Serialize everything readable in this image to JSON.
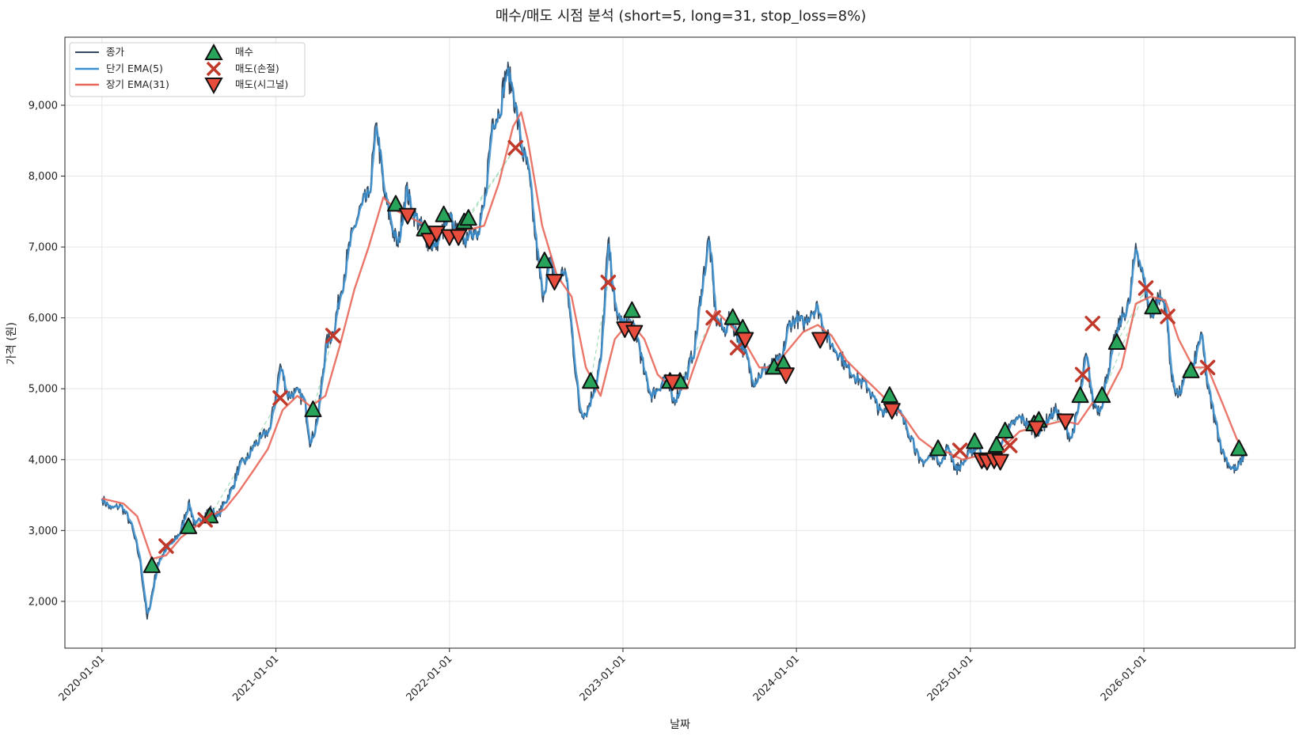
{
  "chart_data": {
    "type": "line",
    "title": "매수/매도 시점 분석 (short=5, long=31, stop_loss=8%)",
    "xlabel": "날짜",
    "ylabel": "가격 (원)",
    "x_range": [
      "2019-10-15",
      "2026-11-15"
    ],
    "ylim": [
      1340,
      9960
    ],
    "grid": true,
    "legend_position": "top-left",
    "x_ticks": [
      "2020-01-01",
      "2021-01-01",
      "2022-01-01",
      "2023-01-01",
      "2024-01-01",
      "2025-01-01",
      "2026-01-01"
    ],
    "y_ticks": [
      2000,
      3000,
      4000,
      5000,
      6000,
      7000,
      8000,
      9000
    ],
    "y_tick_labels": [
      "2,000",
      "3,000",
      "4,000",
      "5,000",
      "6,000",
      "7,000",
      "8,000",
      "9,000"
    ],
    "legend": [
      "종가",
      "단기 EMA(5)",
      "장기 EMA(31)",
      "매수",
      "매도(손절)",
      "매도(시그널)"
    ],
    "colors": {
      "close": "#34495e",
      "ema_short": "#3a8fd0",
      "ema_long": "#e8675a",
      "buy": "#27a35a",
      "stop_loss": "#c0392b",
      "signal_sell": "#e74c3c",
      "trade_link": "#8fd3a8"
    },
    "close_series": [
      [
        "2020-01-01",
        3450
      ],
      [
        "2020-01-20",
        3300
      ],
      [
        "2020-02-10",
        3350
      ],
      [
        "2020-03-01",
        3100
      ],
      [
        "2020-03-20",
        2600
      ],
      [
        "2020-04-05",
        1750
      ],
      [
        "2020-04-20",
        2300
      ],
      [
        "2020-05-01",
        2600
      ],
      [
        "2020-05-15",
        2750
      ],
      [
        "2020-06-01",
        2850
      ],
      [
        "2020-06-15",
        3000
      ],
      [
        "2020-07-01",
        3400
      ],
      [
        "2020-07-15",
        3050
      ],
      [
        "2020-08-01",
        3200
      ],
      [
        "2020-08-15",
        3300
      ],
      [
        "2020-09-01",
        3200
      ],
      [
        "2020-09-15",
        3400
      ],
      [
        "2020-10-01",
        3600
      ],
      [
        "2020-10-15",
        3900
      ],
      [
        "2020-11-01",
        4000
      ],
      [
        "2020-11-15",
        4200
      ],
      [
        "2020-12-01",
        4300
      ],
      [
        "2020-12-20",
        4450
      ],
      [
        "2021-01-10",
        5350
      ],
      [
        "2021-01-25",
        4900
      ],
      [
        "2021-02-10",
        4950
      ],
      [
        "2021-03-01",
        4850
      ],
      [
        "2021-03-15",
        4200
      ],
      [
        "2021-04-01",
        4700
      ],
      [
        "2021-04-15",
        5600
      ],
      [
        "2021-05-01",
        5800
      ],
      [
        "2021-05-15",
        6300
      ],
      [
        "2021-06-01",
        6900
      ],
      [
        "2021-06-15",
        7300
      ],
      [
        "2021-07-01",
        7600
      ],
      [
        "2021-07-15",
        7700
      ],
      [
        "2021-08-01",
        8750
      ],
      [
        "2021-08-15",
        7800
      ],
      [
        "2021-09-01",
        7300
      ],
      [
        "2021-09-15",
        7000
      ],
      [
        "2021-10-01",
        7850
      ],
      [
        "2021-10-15",
        7500
      ],
      [
        "2021-11-01",
        7300
      ],
      [
        "2021-11-15",
        7100
      ],
      [
        "2021-12-01",
        7000
      ],
      [
        "2021-12-15",
        7200
      ],
      [
        "2022-01-01",
        7400
      ],
      [
        "2022-01-15",
        7200
      ],
      [
        "2022-02-01",
        7100
      ],
      [
        "2022-02-15",
        7300
      ],
      [
        "2022-03-01",
        7100
      ],
      [
        "2022-03-15",
        7600
      ],
      [
        "2022-04-01",
        8800
      ],
      [
        "2022-04-15",
        8900
      ],
      [
        "2022-05-01",
        9500
      ],
      [
        "2022-05-15",
        9200
      ],
      [
        "2022-06-01",
        8400
      ],
      [
        "2022-06-15",
        8100
      ],
      [
        "2022-07-01",
        7100
      ],
      [
        "2022-07-15",
        6300
      ],
      [
        "2022-08-01",
        6800
      ],
      [
        "2022-08-15",
        6500
      ],
      [
        "2022-09-01",
        6700
      ],
      [
        "2022-09-15",
        5800
      ],
      [
        "2022-10-01",
        4700
      ],
      [
        "2022-10-15",
        4650
      ],
      [
        "2022-11-01",
        5000
      ],
      [
        "2022-11-15",
        5400
      ],
      [
        "2022-12-01",
        7100
      ],
      [
        "2022-12-15",
        6100
      ],
      [
        "2023-01-01",
        5900
      ],
      [
        "2023-01-15",
        5950
      ],
      [
        "2023-02-01",
        5700
      ],
      [
        "2023-02-15",
        5200
      ],
      [
        "2023-03-01",
        4900
      ],
      [
        "2023-03-15",
        5000
      ],
      [
        "2023-04-01",
        5200
      ],
      [
        "2023-04-15",
        4800
      ],
      [
        "2023-05-01",
        5000
      ],
      [
        "2023-05-15",
        5200
      ],
      [
        "2023-06-01",
        5600
      ],
      [
        "2023-06-15",
        6400
      ],
      [
        "2023-07-01",
        7150
      ],
      [
        "2023-07-15",
        6000
      ],
      [
        "2023-08-01",
        5800
      ],
      [
        "2023-08-15",
        6000
      ],
      [
        "2023-09-01",
        5700
      ],
      [
        "2023-09-15",
        5500
      ],
      [
        "2023-10-01",
        5100
      ],
      [
        "2023-10-15",
        5200
      ],
      [
        "2023-11-01",
        5300
      ],
      [
        "2023-11-15",
        5350
      ],
      [
        "2023-12-01",
        5400
      ],
      [
        "2023-12-15",
        5900
      ],
      [
        "2024-01-01",
        6000
      ],
      [
        "2024-01-15",
        5900
      ],
      [
        "2024-02-01",
        6100
      ],
      [
        "2024-02-15",
        6150
      ],
      [
        "2024-03-01",
        5800
      ],
      [
        "2024-03-15",
        5600
      ],
      [
        "2024-04-01",
        5500
      ],
      [
        "2024-04-15",
        5300
      ],
      [
        "2024-05-01",
        5200
      ],
      [
        "2024-05-15",
        5100
      ],
      [
        "2024-06-01",
        5000
      ],
      [
        "2024-06-15",
        4800
      ],
      [
        "2024-07-01",
        4600
      ],
      [
        "2024-07-15",
        4900
      ],
      [
        "2024-08-01",
        4700
      ],
      [
        "2024-08-15",
        4500
      ],
      [
        "2024-09-01",
        4300
      ],
      [
        "2024-09-15",
        3950
      ],
      [
        "2024-10-01",
        4000
      ],
      [
        "2024-10-15",
        4100
      ],
      [
        "2024-11-01",
        3950
      ],
      [
        "2024-11-15",
        4200
      ],
      [
        "2024-12-01",
        3850
      ],
      [
        "2024-12-15",
        3950
      ],
      [
        "2025-01-01",
        4100
      ],
      [
        "2025-01-15",
        4200
      ],
      [
        "2025-02-01",
        3950
      ],
      [
        "2025-02-15",
        4050
      ],
      [
        "2025-03-01",
        4150
      ],
      [
        "2025-03-15",
        4350
      ],
      [
        "2025-04-01",
        4500
      ],
      [
        "2025-04-15",
        4600
      ],
      [
        "2025-05-01",
        4500
      ],
      [
        "2025-05-15",
        4400
      ],
      [
        "2025-06-01",
        4450
      ],
      [
        "2025-06-15",
        4600
      ],
      [
        "2025-07-01",
        4700
      ],
      [
        "2025-07-15",
        4500
      ],
      [
        "2025-08-01",
        4300
      ],
      [
        "2025-08-15",
        4700
      ],
      [
        "2025-09-01",
        5500
      ],
      [
        "2025-09-15",
        4800
      ],
      [
        "2025-10-01",
        4700
      ],
      [
        "2025-10-15",
        5200
      ],
      [
        "2025-11-01",
        5700
      ],
      [
        "2025-11-15",
        6000
      ],
      [
        "2025-12-01",
        6200
      ],
      [
        "2025-12-15",
        7050
      ],
      [
        "2026-01-01",
        6500
      ],
      [
        "2026-01-15",
        6000
      ],
      [
        "2026-02-01",
        6300
      ],
      [
        "2026-02-15",
        6200
      ],
      [
        "2026-03-01",
        5100
      ],
      [
        "2026-03-15",
        4900
      ],
      [
        "2026-04-01",
        5200
      ],
      [
        "2026-04-15",
        5300
      ],
      [
        "2026-05-01",
        5800
      ],
      [
        "2026-05-15",
        5000
      ],
      [
        "2026-06-01",
        4500
      ],
      [
        "2026-06-15",
        4100
      ],
      [
        "2026-07-01",
        3900
      ],
      [
        "2026-07-15",
        3850
      ],
      [
        "2026-08-01",
        4100
      ]
    ],
    "ema_long_series": [
      [
        "2020-01-01",
        3450
      ],
      [
        "2020-02-15",
        3380
      ],
      [
        "2020-03-15",
        3200
      ],
      [
        "2020-04-15",
        2600
      ],
      [
        "2020-05-15",
        2650
      ],
      [
        "2020-06-15",
        2900
      ],
      [
        "2020-07-15",
        3050
      ],
      [
        "2020-08-15",
        3200
      ],
      [
        "2020-09-15",
        3300
      ],
      [
        "2020-10-15",
        3550
      ],
      [
        "2020-11-15",
        3850
      ],
      [
        "2020-12-15",
        4150
      ],
      [
        "2021-01-15",
        4700
      ],
      [
        "2021-02-15",
        4900
      ],
      [
        "2021-03-15",
        4750
      ],
      [
        "2021-04-15",
        4900
      ],
      [
        "2021-05-15",
        5600
      ],
      [
        "2021-06-15",
        6400
      ],
      [
        "2021-07-15",
        7000
      ],
      [
        "2021-08-15",
        7700
      ],
      [
        "2021-09-15",
        7500
      ],
      [
        "2021-10-15",
        7400
      ],
      [
        "2021-11-15",
        7300
      ],
      [
        "2021-12-15",
        7200
      ],
      [
        "2022-01-15",
        7250
      ],
      [
        "2022-02-15",
        7250
      ],
      [
        "2022-03-15",
        7300
      ],
      [
        "2022-04-15",
        7900
      ],
      [
        "2022-05-15",
        8700
      ],
      [
        "2022-06-01",
        8900
      ],
      [
        "2022-06-15",
        8500
      ],
      [
        "2022-07-15",
        7300
      ],
      [
        "2022-08-15",
        6600
      ],
      [
        "2022-09-15",
        6300
      ],
      [
        "2022-10-15",
        5300
      ],
      [
        "2022-11-15",
        4900
      ],
      [
        "2022-12-15",
        5700
      ],
      [
        "2023-01-15",
        5950
      ],
      [
        "2023-02-15",
        5700
      ],
      [
        "2023-03-15",
        5200
      ],
      [
        "2023-04-15",
        5000
      ],
      [
        "2023-05-15",
        5000
      ],
      [
        "2023-06-15",
        5600
      ],
      [
        "2023-07-15",
        6100
      ],
      [
        "2023-08-15",
        5900
      ],
      [
        "2023-09-15",
        5650
      ],
      [
        "2023-10-15",
        5300
      ],
      [
        "2023-11-15",
        5300
      ],
      [
        "2023-12-15",
        5550
      ],
      [
        "2024-01-15",
        5800
      ],
      [
        "2024-02-15",
        5900
      ],
      [
        "2024-03-15",
        5750
      ],
      [
        "2024-04-15",
        5400
      ],
      [
        "2024-05-15",
        5200
      ],
      [
        "2024-06-15",
        5000
      ],
      [
        "2024-07-15",
        4800
      ],
      [
        "2024-08-15",
        4600
      ],
      [
        "2024-09-15",
        4300
      ],
      [
        "2024-10-15",
        4150
      ],
      [
        "2024-11-15",
        4100
      ],
      [
        "2024-12-15",
        4000
      ],
      [
        "2025-01-15",
        4050
      ],
      [
        "2025-02-15",
        4050
      ],
      [
        "2025-03-15",
        4200
      ],
      [
        "2025-04-15",
        4400
      ],
      [
        "2025-05-15",
        4450
      ],
      [
        "2025-06-15",
        4500
      ],
      [
        "2025-07-15",
        4550
      ],
      [
        "2025-08-15",
        4500
      ],
      [
        "2025-09-15",
        4800
      ],
      [
        "2025-10-15",
        4900
      ],
      [
        "2025-11-15",
        5300
      ],
      [
        "2025-12-15",
        6200
      ],
      [
        "2026-01-15",
        6300
      ],
      [
        "2026-02-15",
        6250
      ],
      [
        "2026-03-15",
        5700
      ],
      [
        "2026-04-15",
        5300
      ],
      [
        "2026-05-15",
        5300
      ],
      [
        "2026-06-15",
        4800
      ],
      [
        "2026-07-15",
        4300
      ],
      [
        "2026-08-01",
        4100
      ]
    ],
    "buy_points": [
      [
        "2020-04-15",
        2500
      ],
      [
        "2020-07-01",
        3050
      ],
      [
        "2020-08-15",
        3200
      ],
      [
        "2021-03-20",
        4700
      ],
      [
        "2021-09-10",
        7600
      ],
      [
        "2021-11-10",
        7250
      ],
      [
        "2021-12-20",
        7450
      ],
      [
        "2022-02-01",
        7350
      ],
      [
        "2022-02-10",
        7400
      ],
      [
        "2022-07-20",
        6800
      ],
      [
        "2022-10-25",
        5100
      ],
      [
        "2023-01-20",
        6100
      ],
      [
        "2023-04-10",
        5100
      ],
      [
        "2023-05-01",
        5100
      ],
      [
        "2023-08-20",
        6000
      ],
      [
        "2023-09-10",
        5850
      ],
      [
        "2023-11-15",
        5300
      ],
      [
        "2023-12-05",
        5350
      ],
      [
        "2024-07-15",
        4900
      ],
      [
        "2024-10-25",
        4150
      ],
      [
        "2025-01-10",
        4250
      ],
      [
        "2025-02-25",
        4200
      ],
      [
        "2025-03-15",
        4400
      ],
      [
        "2025-05-15",
        4500
      ],
      [
        "2025-05-25",
        4550
      ],
      [
        "2025-08-20",
        4900
      ],
      [
        "2025-10-05",
        4900
      ],
      [
        "2025-11-05",
        5650
      ],
      [
        "2026-01-20",
        6150
      ],
      [
        "2026-04-10",
        5250
      ],
      [
        "2026-07-20",
        4150
      ]
    ],
    "stop_loss_points": [
      [
        "2020-05-15",
        2780
      ],
      [
        "2020-08-05",
        3150
      ],
      [
        "2021-01-10",
        4870
      ],
      [
        "2021-05-01",
        5750
      ],
      [
        "2022-05-20",
        8400
      ],
      [
        "2022-12-01",
        6500
      ],
      [
        "2023-07-10",
        6000
      ],
      [
        "2023-08-30",
        5580
      ],
      [
        "2024-12-10",
        4130
      ],
      [
        "2025-03-25",
        4200
      ],
      [
        "2025-08-25",
        5200
      ],
      [
        "2025-09-15",
        5920
      ],
      [
        "2026-01-05",
        6420
      ],
      [
        "2026-02-20",
        6020
      ],
      [
        "2026-05-15",
        5300
      ]
    ],
    "signal_sell_points": [
      [
        "2021-10-05",
        7450
      ],
      [
        "2021-11-20",
        7100
      ],
      [
        "2021-12-05",
        7200
      ],
      [
        "2022-01-01",
        7150
      ],
      [
        "2022-01-20",
        7150
      ],
      [
        "2022-08-10",
        6520
      ],
      [
        "2023-01-05",
        5850
      ],
      [
        "2023-01-25",
        5800
      ],
      [
        "2023-04-15",
        5100
      ],
      [
        "2023-09-15",
        5700
      ],
      [
        "2023-12-10",
        5200
      ],
      [
        "2024-02-20",
        5700
      ],
      [
        "2024-07-20",
        4700
      ],
      [
        "2025-01-25",
        4000
      ],
      [
        "2025-02-05",
        3980
      ],
      [
        "2025-02-20",
        4000
      ],
      [
        "2025-03-05",
        3980
      ],
      [
        "2025-05-20",
        4450
      ],
      [
        "2025-07-20",
        4550
      ]
    ]
  }
}
